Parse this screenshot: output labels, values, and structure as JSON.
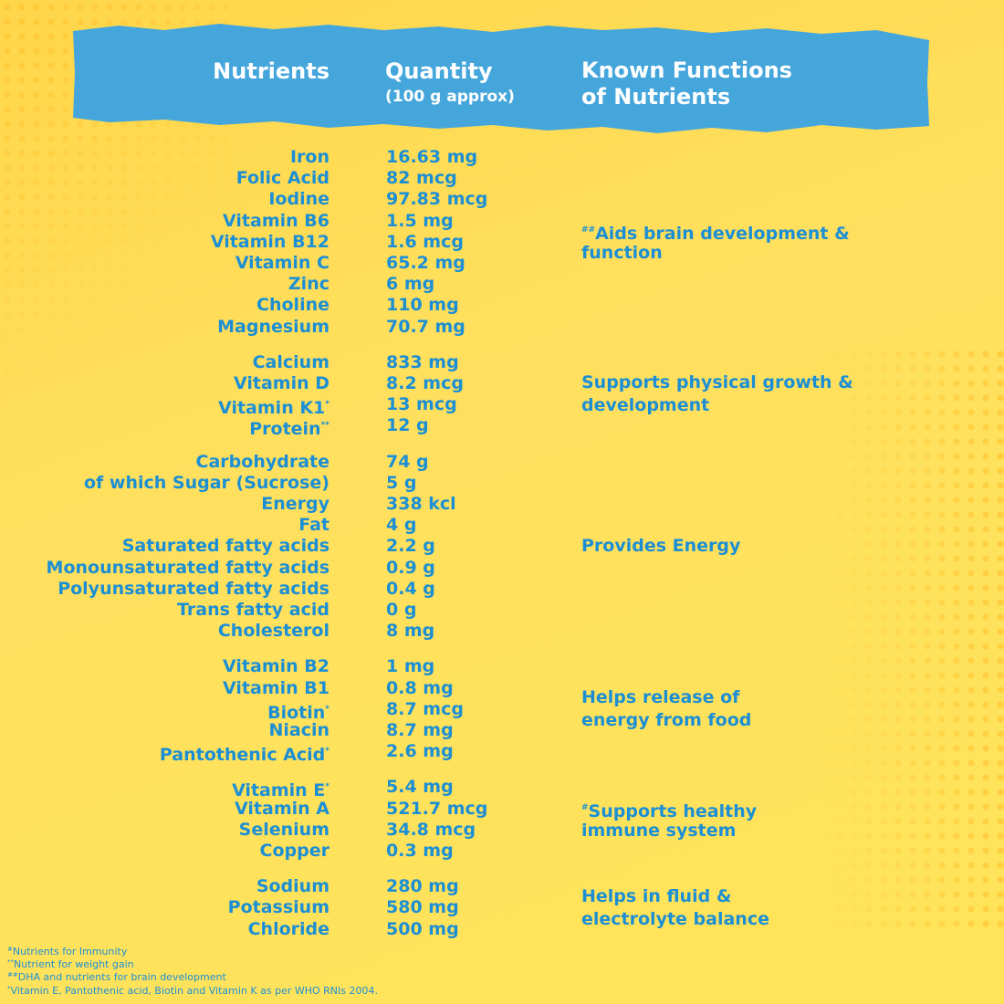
{
  "header": {
    "nutrients": "Nutrients",
    "quantity": "Quantity",
    "quantity_note": "(100 g approx)",
    "functions": [
      "Known Functions",
      "of Nutrients"
    ]
  },
  "groups": [
    {
      "rows": [
        {
          "name": "Iron",
          "quantity": "16.63 mg"
        },
        {
          "name": "Folic Acid",
          "quantity": "82 mcg"
        },
        {
          "name": "Iodine",
          "quantity": "97.83 mcg"
        },
        {
          "name": "Vitamin B6",
          "quantity": "1.5 mg"
        },
        {
          "name": "Vitamin B12",
          "quantity": "1.6 mcg"
        },
        {
          "name": "Vitamin C",
          "quantity": "65.2 mg"
        },
        {
          "name": "Zinc",
          "quantity": "6 mg"
        },
        {
          "name": "Choline",
          "quantity": "110 mg"
        },
        {
          "name": "Magnesium",
          "quantity": "70.7 mg"
        }
      ],
      "function": {
        "mark": "##",
        "lines": [
          "Aids brain development &",
          "function"
        ]
      }
    },
    {
      "rows": [
        {
          "name": "Calcium",
          "quantity": "833 mg"
        },
        {
          "name": "Vitamin D",
          "quantity": "8.2 mcg"
        },
        {
          "name": "Vitamin K1",
          "mark": "*",
          "quantity": "13 mcg"
        },
        {
          "name": "Protein",
          "mark": "**",
          "quantity": "12 g"
        }
      ],
      "function": {
        "lines": [
          "Supports physical growth &",
          "development"
        ]
      }
    },
    {
      "rows": [
        {
          "name": "Carbohydrate",
          "quantity": "74 g"
        },
        {
          "name": "of which Sugar (Sucrose)",
          "quantity": "5 g"
        },
        {
          "name": "Energy",
          "quantity": "338 kcl"
        },
        {
          "name": "Fat",
          "quantity": "4 g"
        },
        {
          "name": "Saturated fatty acids",
          "quantity": "2.2 g"
        },
        {
          "name": "Monounsaturated fatty acids",
          "quantity": "0.9 g"
        },
        {
          "name": "Polyunsaturated fatty acids",
          "quantity": "0.4 g"
        },
        {
          "name": "Trans fatty acid",
          "quantity": "0 g"
        },
        {
          "name": "Cholesterol",
          "quantity": "8 mg"
        }
      ],
      "function": {
        "lines": [
          "Provides Energy"
        ]
      }
    },
    {
      "rows": [
        {
          "name": "Vitamin B2",
          "quantity": "1 mg"
        },
        {
          "name": "Vitamin B1",
          "quantity": "0.8 mg"
        },
        {
          "name": "Biotin",
          "mark": "*",
          "quantity": "8.7 mcg"
        },
        {
          "name": "Niacin",
          "quantity": "8.7 mg"
        },
        {
          "name": "Pantothenic Acid",
          "mark": "*",
          "quantity": "2.6 mg"
        }
      ],
      "function": {
        "lines": [
          "Helps release of",
          "energy from food"
        ]
      }
    },
    {
      "rows": [
        {
          "name": "Vitamin E",
          "mark": "*",
          "quantity": "5.4 mg"
        },
        {
          "name": "Vitamin A",
          "quantity": "521.7 mcg"
        },
        {
          "name": "Selenium",
          "quantity": "34.8 mcg"
        },
        {
          "name": "Copper",
          "quantity": "0.3 mg"
        }
      ],
      "function": {
        "mark": "#",
        "lines": [
          "Supports healthy",
          "immune system"
        ]
      }
    },
    {
      "rows": [
        {
          "name": "Sodium",
          "quantity": "280 mg"
        },
        {
          "name": "Potassium",
          "quantity": "580 mg"
        },
        {
          "name": "Chloride",
          "quantity": "500 mg"
        }
      ],
      "function": {
        "lines": [
          "Helps in fluid &",
          "electrolyte balance"
        ]
      }
    }
  ],
  "footnotes": [
    {
      "mark": "#",
      "text": "Nutrients for Immunity"
    },
    {
      "mark": "**",
      "text": "Nutrient for weight gain"
    },
    {
      "mark": "##",
      "text": "DHA and nutrients for brain development"
    },
    {
      "mark": "*",
      "text": "Vitamin E, Pantothenic acid, Biotin and Vitamin K as per WHO RNIs 2004."
    }
  ]
}
